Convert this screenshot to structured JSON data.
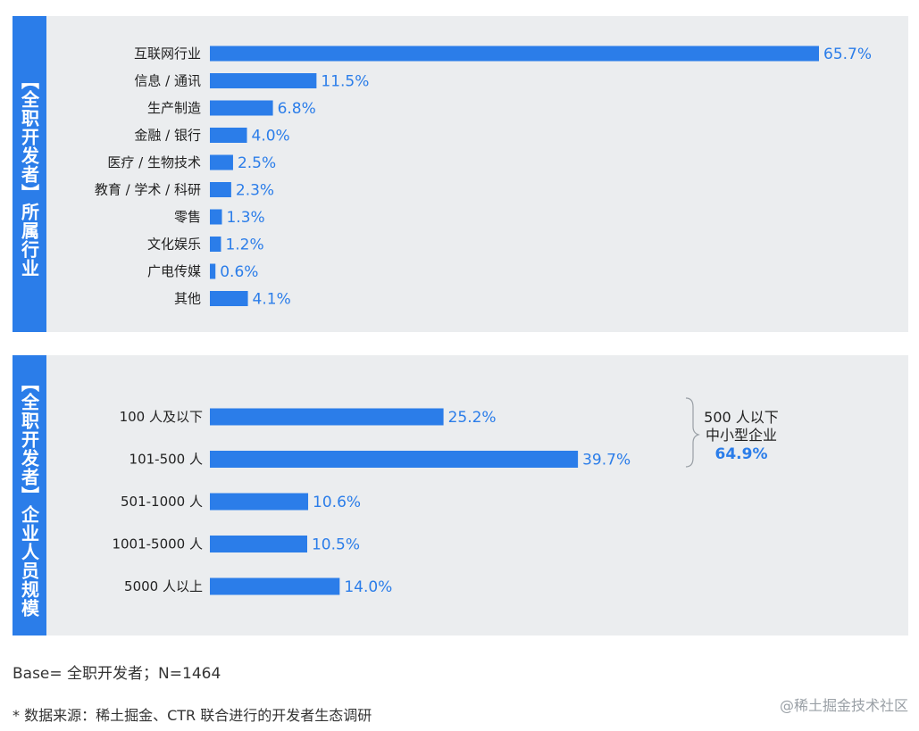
{
  "chart_data": [
    {
      "type": "bar",
      "orientation": "horizontal",
      "title": "【全职开发者】所属行业",
      "categories": [
        "互联网行业",
        "信息 / 通讯",
        "生产制造",
        "金融 / 银行",
        "医疗 / 生物技术",
        "教育 / 学术 / 科研",
        "零售",
        "文化娱乐",
        "广电传媒",
        "其他"
      ],
      "values": [
        65.7,
        11.5,
        6.8,
        4.0,
        2.5,
        2.3,
        1.3,
        1.2,
        0.6,
        4.1
      ],
      "value_labels": [
        "65.7%",
        "11.5%",
        "6.8%",
        "4.0%",
        "2.5%",
        "2.3%",
        "1.3%",
        "1.2%",
        "0.6%",
        "4.1%"
      ],
      "unit": "%",
      "xlim": [
        0,
        65.7
      ]
    },
    {
      "type": "bar",
      "orientation": "horizontal",
      "title": "【全职开发者】企业人员规模",
      "categories": [
        "100 人及以下",
        "101-500 人",
        "501-1000 人",
        "1001-5000 人",
        "5000 人以上"
      ],
      "values": [
        25.2,
        39.7,
        10.6,
        10.5,
        14.0
      ],
      "value_labels": [
        "25.2%",
        "39.7%",
        "10.6%",
        "10.5%",
        "14.0%"
      ],
      "unit": "%",
      "xlim": [
        0,
        65.7
      ],
      "annotation": {
        "line1": "500 人以下",
        "line2": "中小型企业",
        "value": "64.9%"
      }
    }
  ],
  "colors": {
    "bar": "#2b7de9",
    "panel_bg": "#ebedef",
    "text": "#222222"
  },
  "footer": {
    "base": "Base= 全职开发者；N=1464",
    "source": "* 数据来源：稀土掘金、CTR 联合进行的开发者生态调研",
    "watermark": "@稀土掘金技术社区"
  }
}
